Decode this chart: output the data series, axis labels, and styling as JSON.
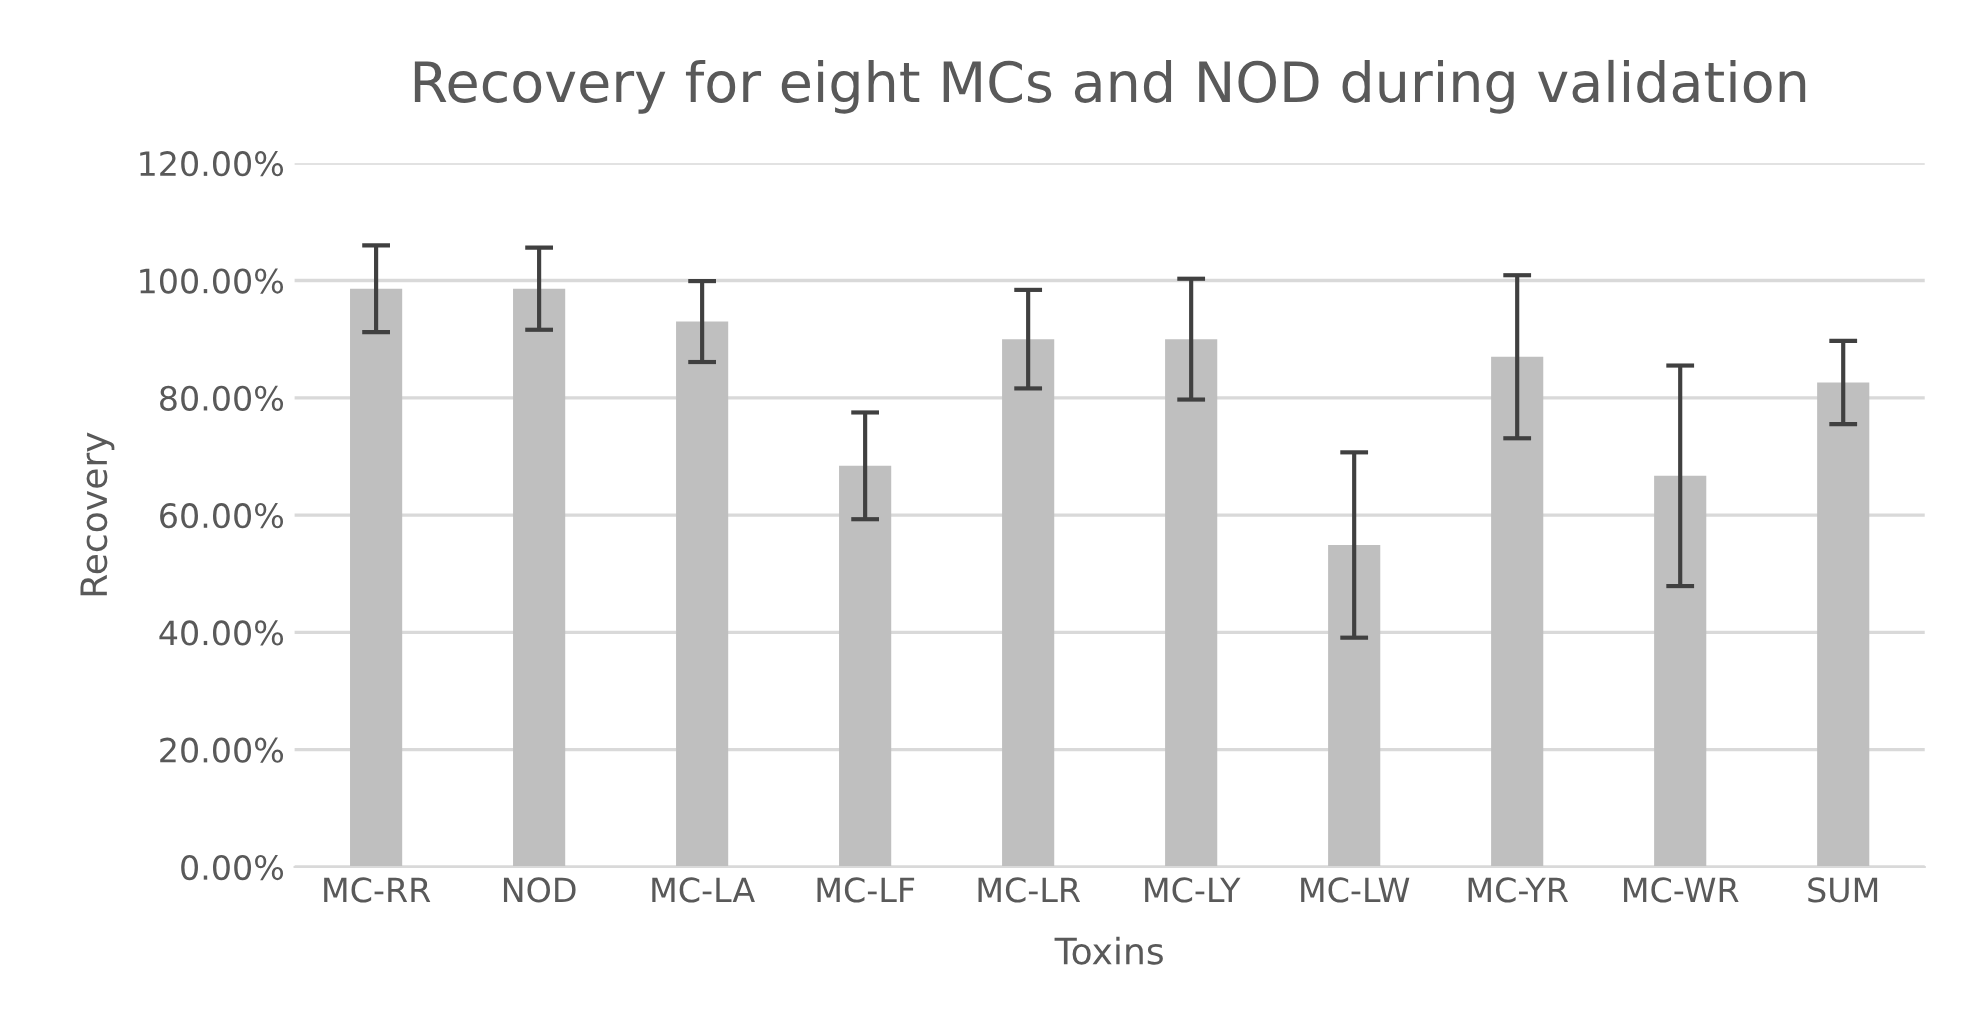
{
  "chart_data": {
    "type": "bar",
    "title": "Recovery for eight MCs and NOD during validation",
    "xlabel": "Toxins",
    "ylabel": "Recovery",
    "categories": [
      "MC-RR",
      "NOD",
      "MC-LA",
      "MC-LF",
      "MC-LR",
      "MC-LY",
      "MC-LW",
      "MC-YR",
      "MC-WR",
      "SUM"
    ],
    "values": [
      98.6,
      98.6,
      93.0,
      68.4,
      90.0,
      90.0,
      54.9,
      87.0,
      66.7,
      82.6
    ],
    "errors": [
      7.4,
      7.0,
      6.9,
      9.1,
      8.4,
      10.3,
      15.8,
      13.9,
      18.8,
      7.1
    ],
    "color": "#bfbfbf",
    "ylim": [
      0,
      120
    ],
    "yticks": [
      {
        "value": 0,
        "label": "0.00%"
      },
      {
        "value": 20,
        "label": "20.00%"
      },
      {
        "value": 40,
        "label": "40.00%"
      },
      {
        "value": 60,
        "label": "60.00%"
      },
      {
        "value": 80,
        "label": "80.00%"
      },
      {
        "value": 100,
        "label": "100.00%"
      },
      {
        "value": 120,
        "label": "120.00%"
      }
    ],
    "grid": "y"
  }
}
